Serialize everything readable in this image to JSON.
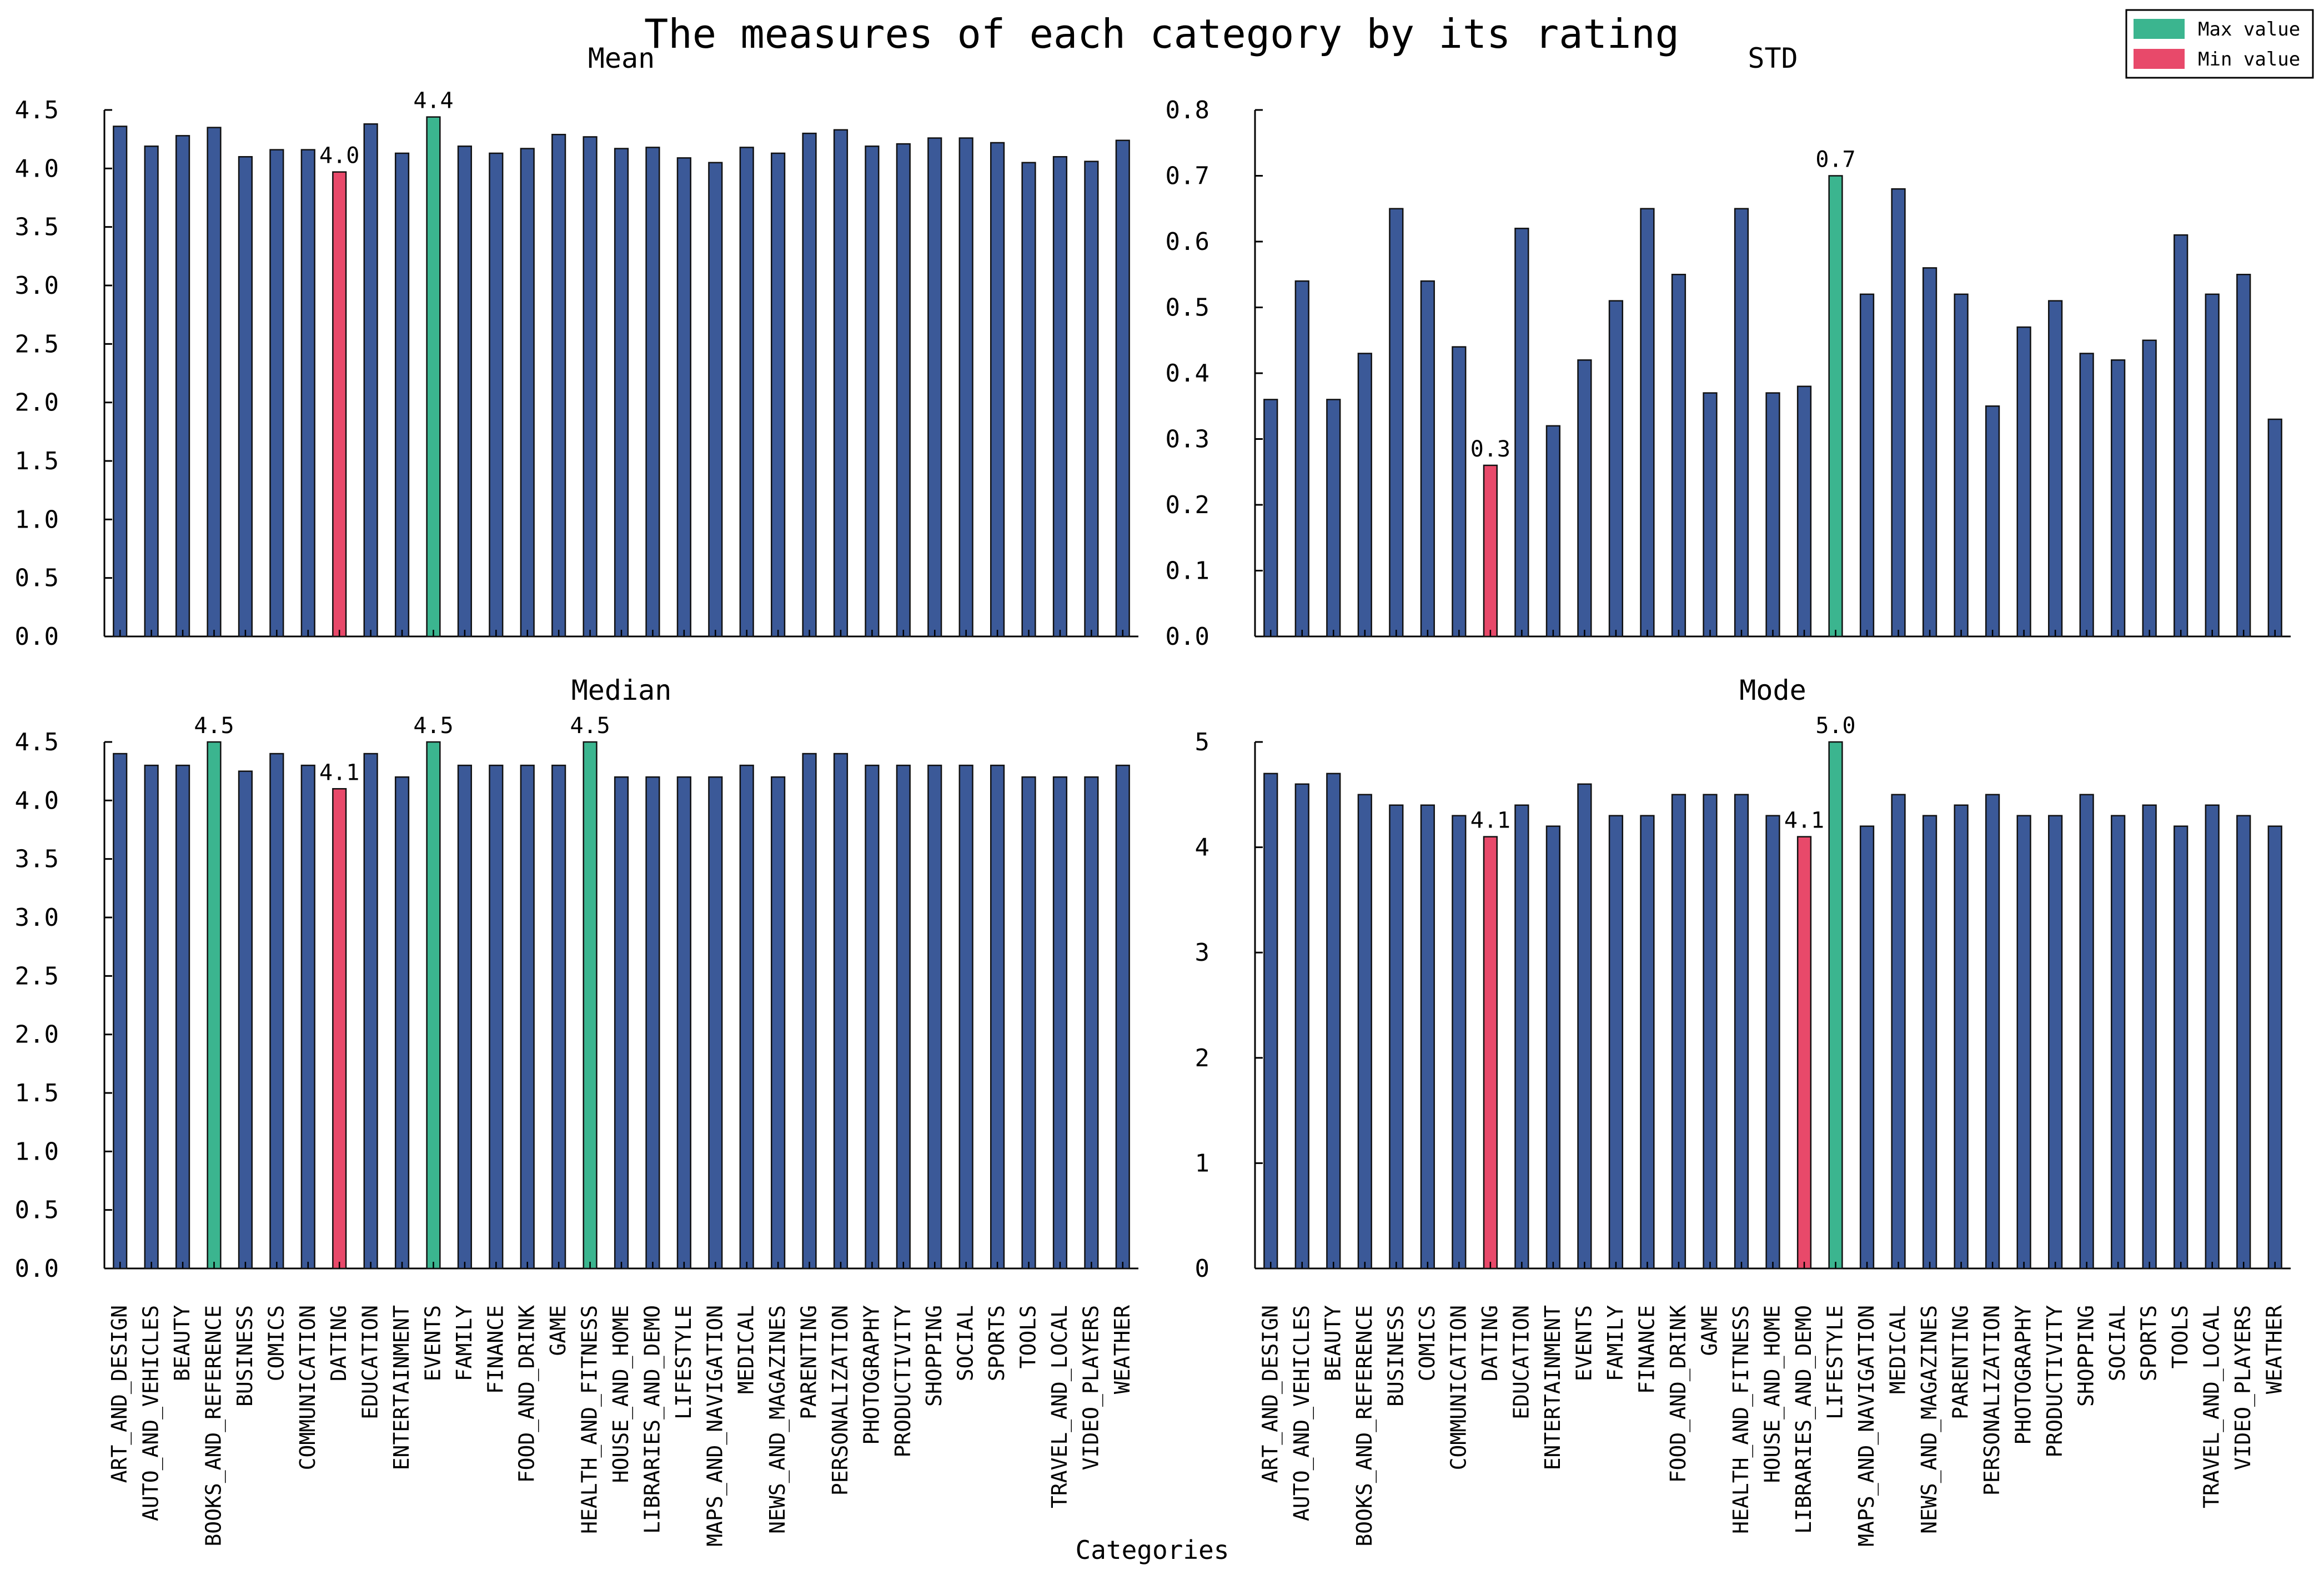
{
  "title": "The measures of each category by its rating",
  "xlabel": "Categories",
  "legend": {
    "placement": "top-right",
    "items": [
      {
        "label": "Max value",
        "color": "#3bb58f"
      },
      {
        "label": "Min value",
        "color": "#e8496a"
      }
    ]
  },
  "colors": {
    "default": "#3b5998",
    "max": "#3bb58f",
    "min": "#e8496a",
    "edge": "#111111"
  },
  "chart_data": [
    {
      "type": "bar",
      "title": "Mean",
      "ylim": [
        0,
        4.5
      ],
      "yticks": [
        0.0,
        0.5,
        1.0,
        1.5,
        2.0,
        2.5,
        3.0,
        3.5,
        4.0,
        4.5
      ],
      "ytick_labels": [
        "0.0",
        "0.5",
        "1.0",
        "1.5",
        "2.0",
        "2.5",
        "3.0",
        "3.5",
        "4.0",
        "4.5"
      ],
      "categories": [
        "ART_AND_DESIGN",
        "AUTO_AND_VEHICLES",
        "BEAUTY",
        "BOOKS_AND_REFERENCE",
        "BUSINESS",
        "COMICS",
        "COMMUNICATION",
        "DATING",
        "EDUCATION",
        "ENTERTAINMENT",
        "EVENTS",
        "FAMILY",
        "FINANCE",
        "FOOD_AND_DRINK",
        "GAME",
        "HEALTH_AND_FITNESS",
        "HOUSE_AND_HOME",
        "LIBRARIES_AND_DEMO",
        "LIFESTYLE",
        "MAPS_AND_NAVIGATION",
        "MEDICAL",
        "NEWS_AND_MAGAZINES",
        "PARENTING",
        "PERSONALIZATION",
        "PHOTOGRAPHY",
        "PRODUCTIVITY",
        "SHOPPING",
        "SOCIAL",
        "SPORTS",
        "TOOLS",
        "TRAVEL_AND_LOCAL",
        "VIDEO_PLAYERS",
        "WEATHER"
      ],
      "values": [
        4.36,
        4.19,
        4.28,
        4.35,
        4.1,
        4.16,
        4.16,
        3.97,
        4.38,
        4.13,
        4.44,
        4.19,
        4.13,
        4.17,
        4.29,
        4.27,
        4.17,
        4.18,
        4.09,
        4.05,
        4.18,
        4.13,
        4.3,
        4.33,
        4.19,
        4.21,
        4.26,
        4.26,
        4.22,
        4.05,
        4.1,
        4.06,
        4.24
      ],
      "highlights": {
        "max": [
          10
        ],
        "min": [
          7
        ]
      },
      "data_labels": [
        {
          "index": 7,
          "text": "4.0"
        },
        {
          "index": 10,
          "text": "4.4"
        }
      ],
      "show_category_labels": false
    },
    {
      "type": "bar",
      "title": "STD",
      "ylim": [
        0,
        0.8
      ],
      "yticks": [
        0.0,
        0.1,
        0.2,
        0.3,
        0.4,
        0.5,
        0.6,
        0.7,
        0.8
      ],
      "ytick_labels": [
        "0.0",
        "0.1",
        "0.2",
        "0.3",
        "0.4",
        "0.5",
        "0.6",
        "0.7",
        "0.8"
      ],
      "categories": [
        "ART_AND_DESIGN",
        "AUTO_AND_VEHICLES",
        "BEAUTY",
        "BOOKS_AND_REFERENCE",
        "BUSINESS",
        "COMICS",
        "COMMUNICATION",
        "DATING",
        "EDUCATION",
        "ENTERTAINMENT",
        "EVENTS",
        "FAMILY",
        "FINANCE",
        "FOOD_AND_DRINK",
        "GAME",
        "HEALTH_AND_FITNESS",
        "HOUSE_AND_HOME",
        "LIBRARIES_AND_DEMO",
        "LIFESTYLE",
        "MAPS_AND_NAVIGATION",
        "MEDICAL",
        "NEWS_AND_MAGAZINES",
        "PARENTING",
        "PERSONALIZATION",
        "PHOTOGRAPHY",
        "PRODUCTIVITY",
        "SHOPPING",
        "SOCIAL",
        "SPORTS",
        "TOOLS",
        "TRAVEL_AND_LOCAL",
        "VIDEO_PLAYERS",
        "WEATHER"
      ],
      "values": [
        0.36,
        0.54,
        0.36,
        0.43,
        0.65,
        0.54,
        0.44,
        0.26,
        0.62,
        0.32,
        0.42,
        0.51,
        0.65,
        0.55,
        0.37,
        0.65,
        0.37,
        0.38,
        0.7,
        0.52,
        0.68,
        0.56,
        0.52,
        0.35,
        0.47,
        0.51,
        0.43,
        0.42,
        0.45,
        0.61,
        0.52,
        0.55,
        0.33
      ],
      "highlights": {
        "max": [
          18
        ],
        "min": [
          7
        ]
      },
      "data_labels": [
        {
          "index": 7,
          "text": "0.3"
        },
        {
          "index": 18,
          "text": "0.7"
        }
      ],
      "show_category_labels": false
    },
    {
      "type": "bar",
      "title": "Median",
      "ylim": [
        0,
        4.5
      ],
      "yticks": [
        0.0,
        0.5,
        1.0,
        1.5,
        2.0,
        2.5,
        3.0,
        3.5,
        4.0,
        4.5
      ],
      "ytick_labels": [
        "0.0",
        "0.5",
        "1.0",
        "1.5",
        "2.0",
        "2.5",
        "3.0",
        "3.5",
        "4.0",
        "4.5"
      ],
      "categories": [
        "ART_AND_DESIGN",
        "AUTO_AND_VEHICLES",
        "BEAUTY",
        "BOOKS_AND_REFERENCE",
        "BUSINESS",
        "COMICS",
        "COMMUNICATION",
        "DATING",
        "EDUCATION",
        "ENTERTAINMENT",
        "EVENTS",
        "FAMILY",
        "FINANCE",
        "FOOD_AND_DRINK",
        "GAME",
        "HEALTH_AND_FITNESS",
        "HOUSE_AND_HOME",
        "LIBRARIES_AND_DEMO",
        "LIFESTYLE",
        "MAPS_AND_NAVIGATION",
        "MEDICAL",
        "NEWS_AND_MAGAZINES",
        "PARENTING",
        "PERSONALIZATION",
        "PHOTOGRAPHY",
        "PRODUCTIVITY",
        "SHOPPING",
        "SOCIAL",
        "SPORTS",
        "TOOLS",
        "TRAVEL_AND_LOCAL",
        "VIDEO_PLAYERS",
        "WEATHER"
      ],
      "values": [
        4.4,
        4.3,
        4.3,
        4.5,
        4.25,
        4.4,
        4.3,
        4.1,
        4.4,
        4.2,
        4.5,
        4.3,
        4.3,
        4.3,
        4.3,
        4.5,
        4.2,
        4.2,
        4.2,
        4.2,
        4.3,
        4.2,
        4.4,
        4.4,
        4.3,
        4.3,
        4.3,
        4.3,
        4.3,
        4.2,
        4.2,
        4.2,
        4.3
      ],
      "highlights": {
        "max": [
          3,
          10,
          15
        ],
        "min": [
          7
        ]
      },
      "data_labels": [
        {
          "index": 3,
          "text": "4.5"
        },
        {
          "index": 7,
          "text": "4.1"
        },
        {
          "index": 10,
          "text": "4.5"
        },
        {
          "index": 15,
          "text": "4.5"
        }
      ],
      "show_category_labels": true
    },
    {
      "type": "bar",
      "title": "Mode",
      "ylim": [
        0,
        5
      ],
      "yticks": [
        0,
        1,
        2,
        3,
        4,
        5
      ],
      "ytick_labels": [
        "0",
        "1",
        "2",
        "3",
        "4",
        "5"
      ],
      "categories": [
        "ART_AND_DESIGN",
        "AUTO_AND_VEHICLES",
        "BEAUTY",
        "BOOKS_AND_REFERENCE",
        "BUSINESS",
        "COMICS",
        "COMMUNICATION",
        "DATING",
        "EDUCATION",
        "ENTERTAINMENT",
        "EVENTS",
        "FAMILY",
        "FINANCE",
        "FOOD_AND_DRINK",
        "GAME",
        "HEALTH_AND_FITNESS",
        "HOUSE_AND_HOME",
        "LIBRARIES_AND_DEMO",
        "LIFESTYLE",
        "MAPS_AND_NAVIGATION",
        "MEDICAL",
        "NEWS_AND_MAGAZINES",
        "PARENTING",
        "PERSONALIZATION",
        "PHOTOGRAPHY",
        "PRODUCTIVITY",
        "SHOPPING",
        "SOCIAL",
        "SPORTS",
        "TOOLS",
        "TRAVEL_AND_LOCAL",
        "VIDEO_PLAYERS",
        "WEATHER"
      ],
      "values": [
        4.7,
        4.6,
        4.7,
        4.5,
        4.4,
        4.4,
        4.3,
        4.1,
        4.4,
        4.2,
        4.6,
        4.3,
        4.3,
        4.5,
        4.5,
        4.5,
        4.3,
        4.1,
        5.0,
        4.2,
        4.5,
        4.3,
        4.4,
        4.5,
        4.3,
        4.3,
        4.5,
        4.3,
        4.4,
        4.2,
        4.4,
        4.3,
        4.2
      ],
      "highlights": {
        "max": [
          18
        ],
        "min": [
          7,
          17
        ]
      },
      "data_labels": [
        {
          "index": 7,
          "text": "4.1"
        },
        {
          "index": 17,
          "text": "4.1"
        },
        {
          "index": 18,
          "text": "5.0"
        }
      ],
      "show_category_labels": true
    }
  ]
}
